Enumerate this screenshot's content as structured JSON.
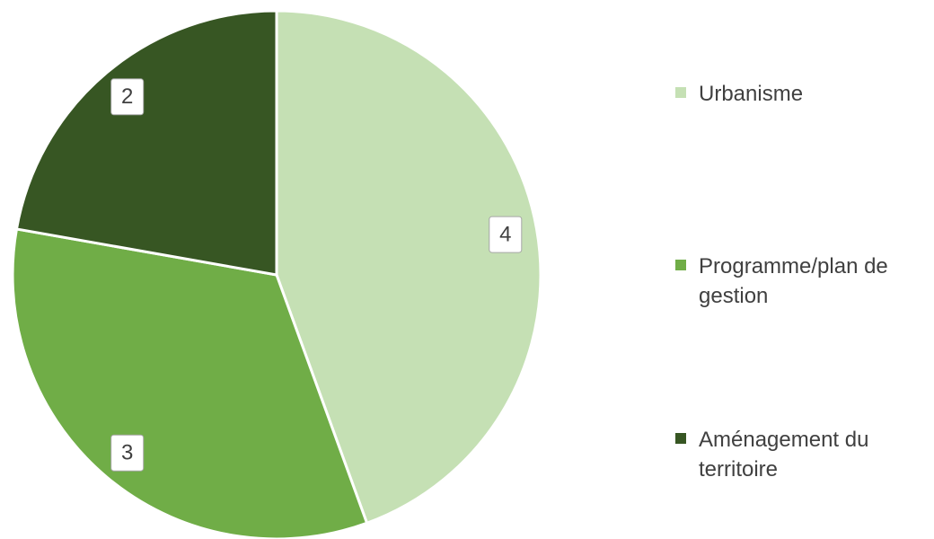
{
  "chart_data": {
    "type": "pie",
    "categories": [
      "Urbanisme",
      "Programme/plan de gestion",
      "Aménagement du territoire"
    ],
    "values": [
      4,
      3,
      2
    ],
    "colors": [
      "#c5e0b4",
      "#70ad47",
      "#375623"
    ],
    "legend": "right"
  }
}
